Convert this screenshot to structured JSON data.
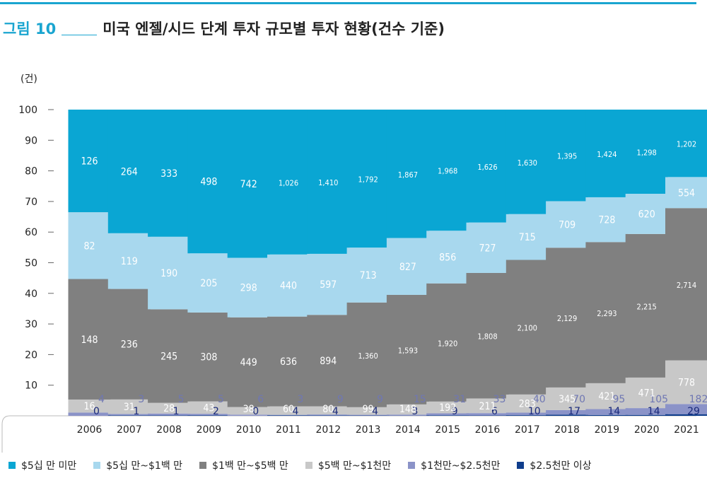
{
  "figure": {
    "number": "그림 10",
    "title": "미국 엔젤/시드 단계 투자 규모별 투자 현황(건수 기준)"
  },
  "chart_data": {
    "type": "bar",
    "stacked": "percent",
    "y_unit": "(건)",
    "y_ticks": [
      "10",
      "20",
      "30",
      "40",
      "50",
      "60",
      "70",
      "80",
      "90",
      "100"
    ],
    "ylim": [
      0,
      100
    ],
    "categories": [
      "2006",
      "2007",
      "2008",
      "2009",
      "2010",
      "2011",
      "2012",
      "2013",
      "2014",
      "2015",
      "2016",
      "2017",
      "2018",
      "2019",
      "2020",
      "2021"
    ],
    "series": [
      {
        "name": "$2.5천만 이상",
        "color": "#0f3d8c",
        "values": [
          0,
          1,
          1,
          2,
          0,
          4,
          4,
          4,
          3,
          9,
          6,
          10,
          17,
          14,
          14,
          29
        ],
        "labels": [
          "0",
          "1",
          "1",
          "2",
          "0",
          "4",
          "4",
          "4",
          "3",
          "9",
          "6",
          "10",
          "17",
          "14",
          "14",
          "29"
        ]
      },
      {
        "name": "$1천만~$2.5천만",
        "color": "#8b93c8",
        "values": [
          4,
          3,
          5,
          5,
          6,
          3,
          9,
          9,
          15,
          31,
          33,
          40,
          70,
          95,
          105,
          182
        ],
        "labels": [
          "4",
          "3",
          "5",
          "5",
          "6",
          "3",
          "9",
          "9",
          "15",
          "31",
          "33",
          "40",
          "70",
          "95",
          "105",
          "182"
        ]
      },
      {
        "name": "$5백 만~$1천만",
        "color": "#c8c8c8",
        "values": [
          16,
          31,
          28,
          43,
          38,
          60,
          80,
          99,
          148,
          192,
          211,
          283,
          345,
          421,
          471,
          778
        ],
        "labels": [
          "16",
          "31",
          "28",
          "43",
          "38",
          "60",
          "80",
          "99",
          "148",
          "192",
          "211",
          "283",
          "345",
          "421",
          "471",
          "778"
        ]
      },
      {
        "name": "$1백 만~$5백 만",
        "color": "#808080",
        "values": [
          148,
          236,
          245,
          308,
          449,
          636,
          894,
          1360,
          1593,
          1920,
          1808,
          2100,
          2129,
          2293,
          2215,
          2714
        ],
        "labels": [
          "148",
          "236",
          "245",
          "308",
          "449",
          "636",
          "894",
          "1,360",
          "1,593",
          "1,920",
          "1,808",
          "2,100",
          "2,129",
          "2,293",
          "2,215",
          "2,714"
        ]
      },
      {
        "name": "$5십 만~$1백 만",
        "color": "#a8d8ee",
        "values": [
          82,
          119,
          190,
          205,
          298,
          440,
          597,
          713,
          827,
          856,
          727,
          715,
          709,
          728,
          620,
          554
        ],
        "labels": [
          "82",
          "119",
          "190",
          "205",
          "298",
          "440",
          "597",
          "713",
          "827",
          "856",
          "727",
          "715",
          "709",
          "728",
          "620",
          "554"
        ]
      },
      {
        "name": "$5십 만 미만",
        "color": "#0aa6d3",
        "values": [
          126,
          264,
          333,
          498,
          742,
          1026,
          1410,
          1792,
          1867,
          1968,
          1626,
          1630,
          1395,
          1424,
          1298,
          1202
        ],
        "labels": [
          "126",
          "264",
          "333",
          "498",
          "742",
          "1,026",
          "1,410",
          "1,792",
          "1,867",
          "1,968",
          "1,626",
          "1,630",
          "1,395",
          "1,424",
          "1,298",
          "1,202"
        ]
      }
    ]
  },
  "legend": [
    {
      "label": "$5십 만 미만",
      "color": "#0aa6d3"
    },
    {
      "label": "$5십 만~$1백 만",
      "color": "#a8d8ee"
    },
    {
      "label": "$1백 만~$5백 만",
      "color": "#808080"
    },
    {
      "label": "$5백 만~$1천만",
      "color": "#c8c8c8"
    },
    {
      "label": "$1천만~$2.5천만",
      "color": "#8b93c8"
    },
    {
      "label": "$2.5천만 이상",
      "color": "#0f3d8c"
    }
  ]
}
